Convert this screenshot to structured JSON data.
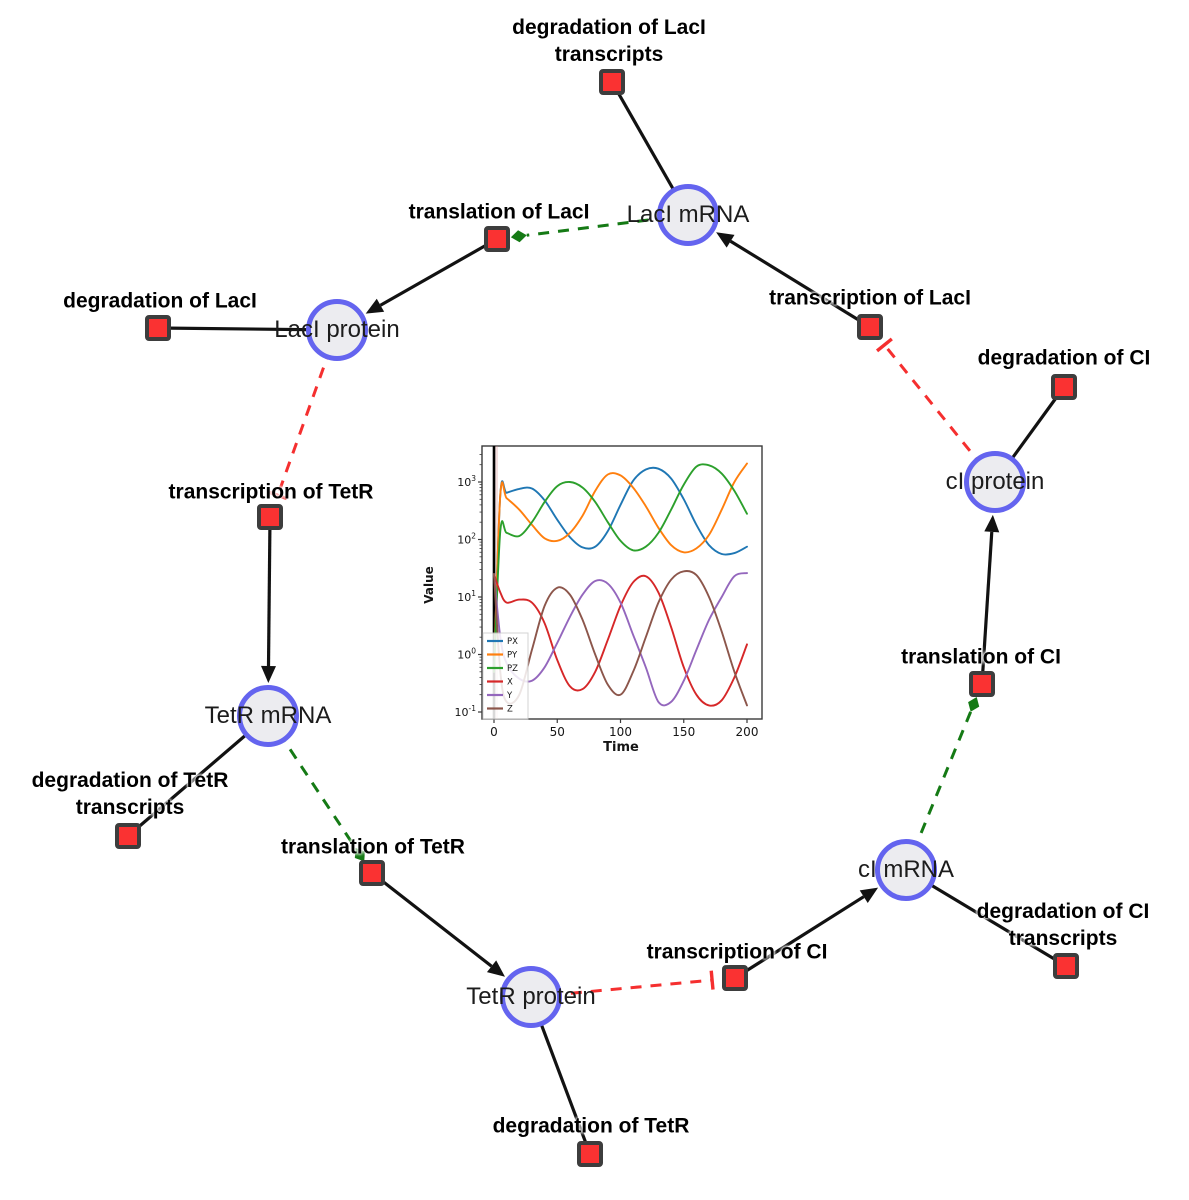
{
  "diagram": {
    "species": [
      {
        "id": "laci_mrna",
        "label": "LacI mRNA"
      },
      {
        "id": "laci_protein",
        "label": "LacI protein"
      },
      {
        "id": "tetr_mrna",
        "label": "TetR mRNA"
      },
      {
        "id": "tetr_protein",
        "label": "TetR protein"
      },
      {
        "id": "ci_mrna",
        "label": "cI mRNA"
      },
      {
        "id": "ci_protein",
        "label": "cI protein"
      }
    ],
    "reactions": [
      {
        "id": "deg_laci_tx",
        "label_lines": [
          "degradation of LacI",
          "transcripts"
        ]
      },
      {
        "id": "transl_laci",
        "label_lines": [
          "translation of LacI"
        ]
      },
      {
        "id": "deg_laci",
        "label_lines": [
          "degradation of LacI"
        ]
      },
      {
        "id": "tx_laci",
        "label_lines": [
          "transcription of LacI"
        ]
      },
      {
        "id": "deg_ci",
        "label_lines": [
          "degradation of CI"
        ]
      },
      {
        "id": "tx_tetr",
        "label_lines": [
          "transcription of TetR"
        ]
      },
      {
        "id": "deg_tetr_tx",
        "label_lines": [
          "degradation of TetR",
          "transcripts"
        ]
      },
      {
        "id": "transl_tetr",
        "label_lines": [
          "translation of TetR"
        ]
      },
      {
        "id": "deg_tetr",
        "label_lines": [
          "degradation of TetR"
        ]
      },
      {
        "id": "tx_ci",
        "label_lines": [
          "transcription of CI"
        ]
      },
      {
        "id": "deg_ci_tx",
        "label_lines": [
          "degradation of CI",
          "transcripts"
        ]
      },
      {
        "id": "transl_ci",
        "label_lines": [
          "translation of CI"
        ]
      }
    ],
    "edges": [
      {
        "source": "laci_mrna",
        "target": "deg_laci_tx",
        "type": "consumption"
      },
      {
        "source": "laci_protein",
        "target": "deg_laci",
        "type": "consumption"
      },
      {
        "source": "tetr_mrna",
        "target": "deg_tetr_tx",
        "type": "consumption"
      },
      {
        "source": "tetr_protein",
        "target": "deg_tetr",
        "type": "consumption"
      },
      {
        "source": "ci_mrna",
        "target": "deg_ci_tx",
        "type": "consumption"
      },
      {
        "source": "ci_protein",
        "target": "deg_ci",
        "type": "consumption"
      },
      {
        "source": "transl_laci",
        "target": "laci_protein",
        "type": "production"
      },
      {
        "source": "tx_laci",
        "target": "laci_mrna",
        "type": "production"
      },
      {
        "source": "tx_tetr",
        "target": "tetr_mrna",
        "type": "production"
      },
      {
        "source": "transl_tetr",
        "target": "tetr_protein",
        "type": "production"
      },
      {
        "source": "tx_ci",
        "target": "ci_mrna",
        "type": "production"
      },
      {
        "source": "transl_ci",
        "target": "ci_protein",
        "type": "production"
      },
      {
        "source": "laci_mrna",
        "target": "transl_laci",
        "type": "modifier"
      },
      {
        "source": "tetr_mrna",
        "target": "transl_tetr",
        "type": "modifier"
      },
      {
        "source": "ci_mrna",
        "target": "transl_ci",
        "type": "modifier"
      },
      {
        "source": "laci_protein",
        "target": "tx_tetr",
        "type": "inhibition"
      },
      {
        "source": "tetr_protein",
        "target": "tx_ci",
        "type": "inhibition"
      },
      {
        "source": "ci_protein",
        "target": "tx_laci",
        "type": "inhibition"
      }
    ],
    "colors": {
      "species_fill": "#ececf0",
      "species_border": "#6464ef",
      "reaction_fill": "#fa3232",
      "reaction_border": "#3d3d3d",
      "edge_black": "#121212",
      "modifier_green": "#157a15",
      "inhibition_red": "#f52f2f"
    }
  },
  "chart_data": {
    "type": "line",
    "title": "",
    "xlabel": "Time",
    "ylabel": "Value",
    "x_ticks": [
      0,
      50,
      100,
      150,
      200
    ],
    "y_tick_exponents": [
      -1,
      0,
      1,
      2,
      3
    ],
    "y_scale": "log",
    "grid": false,
    "legend_position": "lower left",
    "event_line_x": 0,
    "x": [
      0,
      5,
      10,
      20,
      30,
      40,
      50,
      60,
      70,
      80,
      90,
      100,
      110,
      120,
      130,
      140,
      150,
      160,
      170,
      180,
      190,
      200
    ],
    "series": [
      {
        "name": "PX",
        "color": "#1f77b4",
        "values": [
          0.5,
          600,
          650,
          760,
          770,
          480,
          220,
          110,
          73,
          75,
          140,
          400,
          1050,
          1650,
          1700,
          1150,
          500,
          180,
          80,
          56,
          58,
          75
        ]
      },
      {
        "name": "PY",
        "color": "#ff7f0e",
        "values": [
          0.5,
          600,
          520,
          330,
          180,
          105,
          95,
          130,
          260,
          700,
          1350,
          1300,
          800,
          380,
          160,
          80,
          60,
          70,
          120,
          330,
          1000,
          2100
        ]
      },
      {
        "name": "PZ",
        "color": "#2ca02c",
        "values": [
          0.5,
          140,
          130,
          115,
          200,
          450,
          850,
          1000,
          800,
          450,
          200,
          95,
          65,
          75,
          130,
          330,
          900,
          1850,
          1950,
          1400,
          700,
          280
        ]
      },
      {
        "name": "X",
        "color": "#d62728",
        "values": [
          25,
          12,
          8,
          9,
          8,
          3.5,
          0.8,
          0.28,
          0.25,
          0.5,
          1.8,
          7,
          18,
          23,
          12,
          3,
          0.6,
          0.2,
          0.13,
          0.16,
          0.4,
          1.5
        ]
      },
      {
        "name": "Y",
        "color": "#9467bd",
        "values": [
          25,
          2,
          0.7,
          0.38,
          0.35,
          0.6,
          1.6,
          4.5,
          11,
          19,
          17,
          8,
          2.2,
          0.6,
          0.15,
          0.15,
          0.35,
          1.2,
          4,
          10,
          23,
          26
        ]
      },
      {
        "name": "Z",
        "color": "#8c564b",
        "values": [
          25,
          0.5,
          0.15,
          0.2,
          1.2,
          7,
          14.5,
          11,
          4,
          1,
          0.3,
          0.2,
          0.5,
          2,
          8,
          20,
          28,
          24,
          10,
          2.5,
          0.5,
          0.13
        ]
      }
    ]
  }
}
